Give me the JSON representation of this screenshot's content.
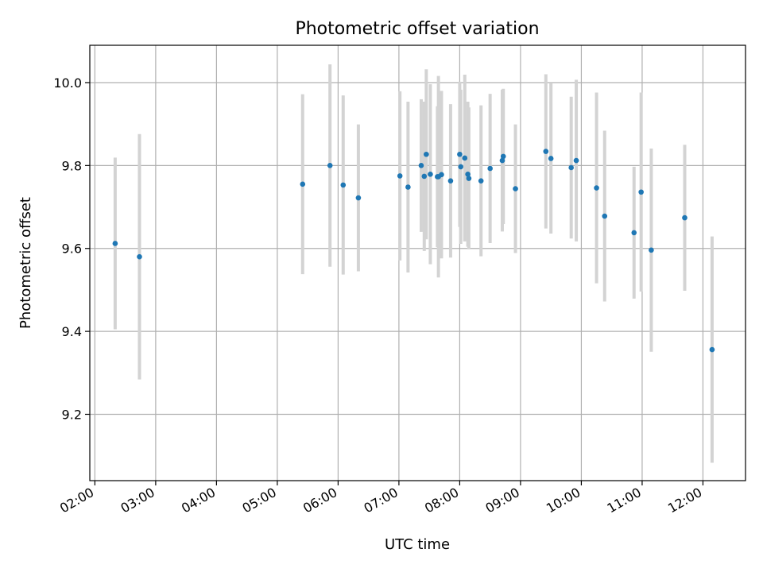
{
  "chart_data": {
    "type": "scatter",
    "title": "Photometric offset variation",
    "xlabel": "UTC time",
    "ylabel": "Photometric offset",
    "x_unit": "hours (UTC)",
    "xlim": [
      "01:55",
      "12:42"
    ],
    "ylim": [
      9.04,
      10.09
    ],
    "x_ticks": [
      "02:00",
      "03:00",
      "04:00",
      "05:00",
      "06:00",
      "07:00",
      "08:00",
      "09:00",
      "10:00",
      "11:00",
      "12:00"
    ],
    "y_ticks": [
      "9.2",
      "9.4",
      "9.6",
      "9.8",
      "10.0"
    ],
    "grid": true,
    "colors": {
      "points": "#1f77b4",
      "error_bars": "#d3d3d3"
    },
    "series": [
      {
        "points": [
          {
            "x": "02:20",
            "y": 9.612,
            "err": 0.207
          },
          {
            "x": "02:44",
            "y": 9.58,
            "err": 0.296
          },
          {
            "x": "05:25",
            "y": 9.755,
            "err": 0.217
          },
          {
            "x": "05:52",
            "y": 9.8,
            "err": 0.244
          },
          {
            "x": "06:05",
            "y": 9.753,
            "err": 0.216
          },
          {
            "x": "06:20",
            "y": 9.722,
            "err": 0.177
          },
          {
            "x": "07:01",
            "y": 9.775,
            "err": 0.204
          },
          {
            "x": "07:09",
            "y": 9.748,
            "err": 0.206
          },
          {
            "x": "07:22",
            "y": 9.8,
            "err": 0.16
          },
          {
            "x": "07:25",
            "y": 9.774,
            "err": 0.18
          },
          {
            "x": "07:27",
            "y": 9.827,
            "err": 0.205
          },
          {
            "x": "07:31",
            "y": 9.779,
            "err": 0.217
          },
          {
            "x": "07:38",
            "y": 9.773,
            "err": 0.17
          },
          {
            "x": "07:39",
            "y": 9.773,
            "err": 0.243
          },
          {
            "x": "07:42",
            "y": 9.778,
            "err": 0.202
          },
          {
            "x": "07:51",
            "y": 9.763,
            "err": 0.185
          },
          {
            "x": "08:00",
            "y": 9.827,
            "err": 0.175
          },
          {
            "x": "08:01",
            "y": 9.797,
            "err": 0.186
          },
          {
            "x": "08:05",
            "y": 9.818,
            "err": 0.201
          },
          {
            "x": "08:08",
            "y": 9.779,
            "err": 0.175
          },
          {
            "x": "08:09",
            "y": 9.769,
            "err": 0.171
          },
          {
            "x": "08:21",
            "y": 9.763,
            "err": 0.182
          },
          {
            "x": "08:30",
            "y": 9.793,
            "err": 0.18
          },
          {
            "x": "08:42",
            "y": 9.812,
            "err": 0.171
          },
          {
            "x": "08:43",
            "y": 9.822,
            "err": 0.163
          },
          {
            "x": "08:55",
            "y": 9.744,
            "err": 0.155
          },
          {
            "x": "09:25",
            "y": 9.834,
            "err": 0.186
          },
          {
            "x": "09:30",
            "y": 9.817,
            "err": 0.181
          },
          {
            "x": "09:50",
            "y": 9.795,
            "err": 0.171
          },
          {
            "x": "09:55",
            "y": 9.812,
            "err": 0.195
          },
          {
            "x": "10:15",
            "y": 9.746,
            "err": 0.23
          },
          {
            "x": "10:23",
            "y": 9.678,
            "err": 0.206
          },
          {
            "x": "10:52",
            "y": 9.638,
            "err": 0.159
          },
          {
            "x": "10:59",
            "y": 9.736,
            "err": 0.24
          },
          {
            "x": "11:09",
            "y": 9.596,
            "err": 0.245
          },
          {
            "x": "11:42",
            "y": 9.674,
            "err": 0.176
          },
          {
            "x": "12:09",
            "y": 9.356,
            "err": 0.273
          }
        ]
      }
    ]
  }
}
